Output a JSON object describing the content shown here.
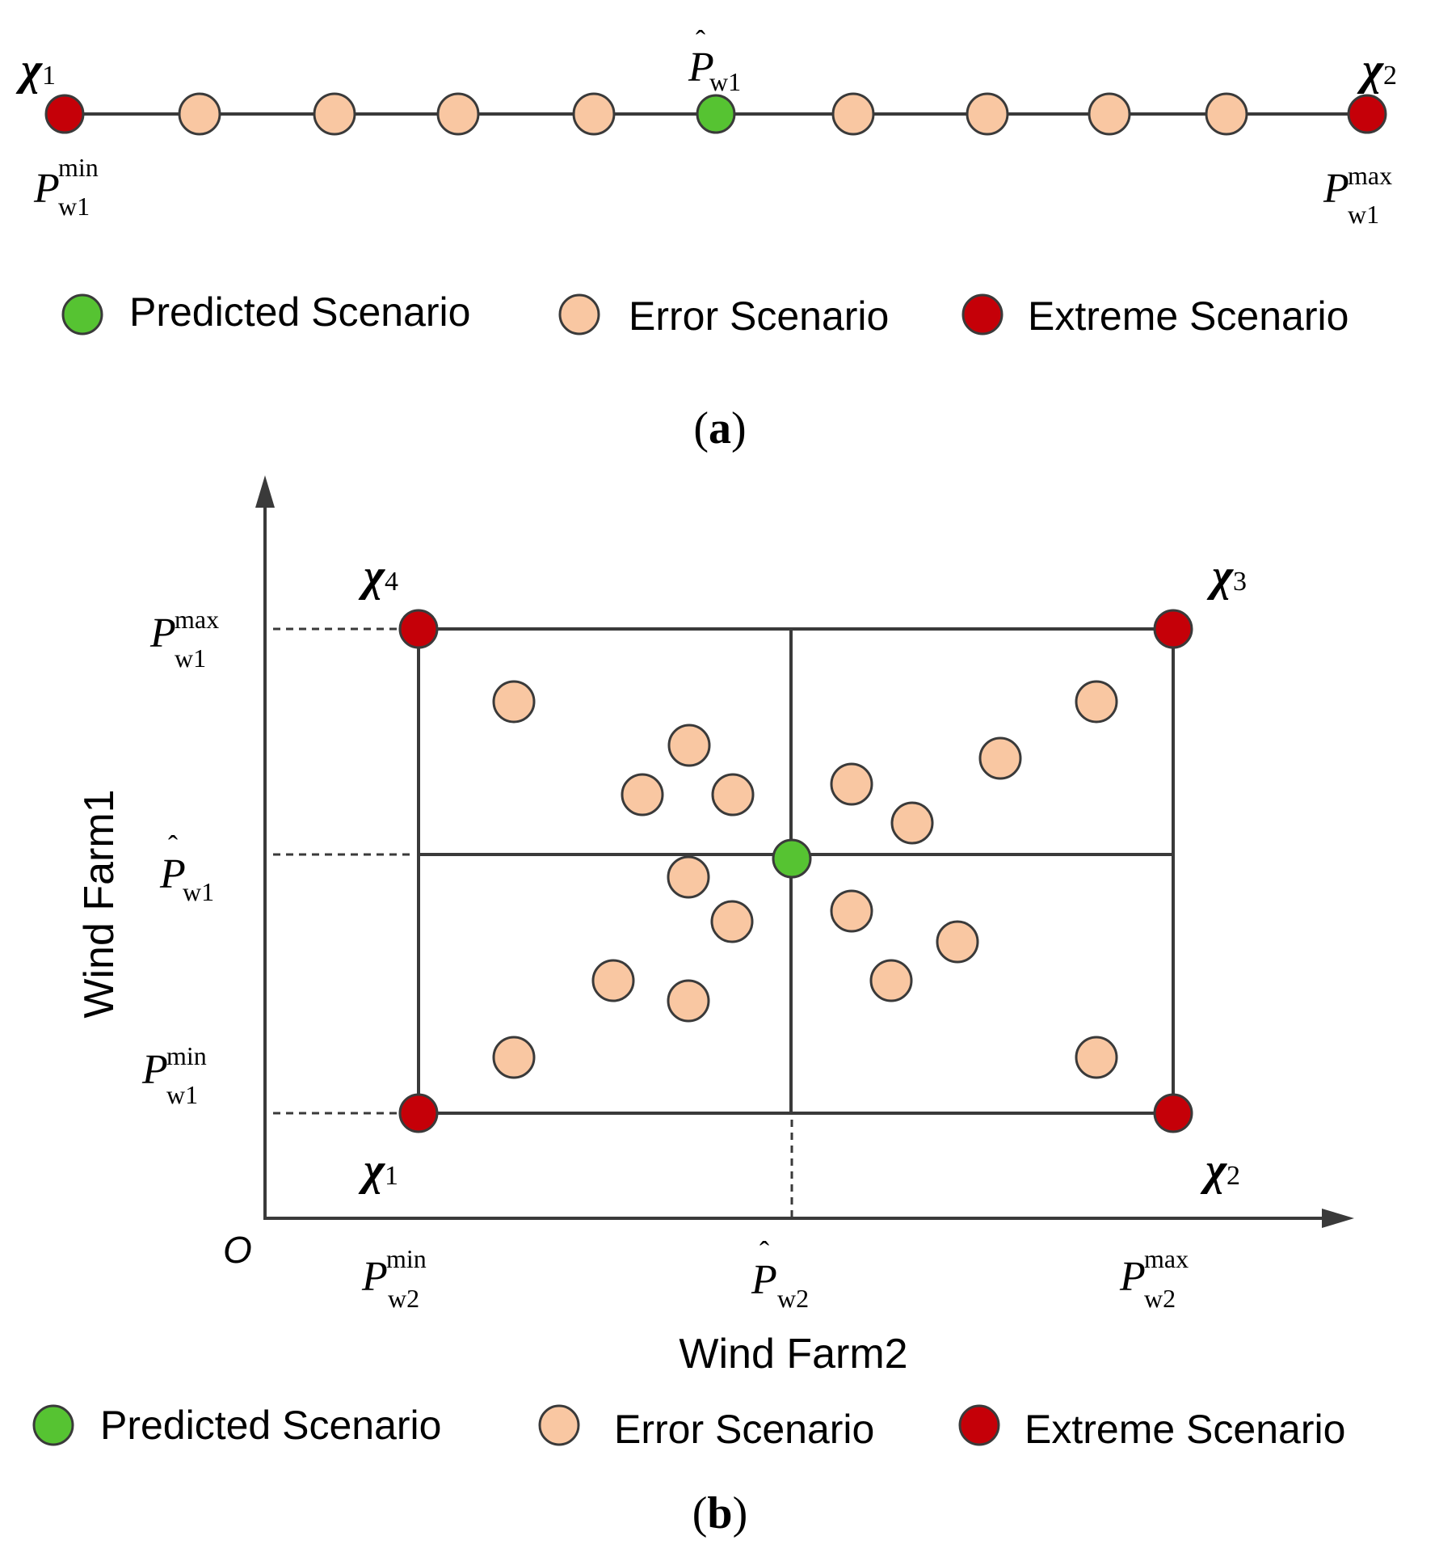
{
  "legend": {
    "predicted": "Predicted Scenario",
    "error": "Error Scenario",
    "extreme": "Extreme Scenario"
  },
  "colors": {
    "predicted_fill": "#56c332",
    "error_fill": "#f9c7a2",
    "extreme_fill": "#c50008",
    "stroke": "#3a3a3a",
    "text": "#000000"
  },
  "panel_a": {
    "caption": "a",
    "points": [
      "extreme",
      "error",
      "error",
      "error",
      "error",
      "predicted",
      "error",
      "error",
      "error",
      "error",
      "extreme"
    ],
    "chi_left_sub": "1",
    "chi_right_sub": "2",
    "top_label": {
      "main": "P",
      "sub": "w1",
      "hat": true
    },
    "min_label": {
      "main": "P",
      "sub": "w1",
      "sup": "min"
    },
    "max_label": {
      "main": "P",
      "sub": "w1",
      "sup": "max"
    }
  },
  "panel_b": {
    "caption": "b",
    "x_axis_title": "Wind Farm2",
    "y_axis_title": "Wind Farm1",
    "origin": "O",
    "chi_labels": [
      "1",
      "2",
      "3",
      "4"
    ],
    "y_ticks": [
      {
        "main": "P",
        "sub": "w1",
        "sup": "max"
      },
      {
        "main": "P",
        "sub": "w1",
        "hat": true
      },
      {
        "main": "P",
        "sub": "w1",
        "sup": "min"
      }
    ],
    "x_ticks": [
      {
        "main": "P",
        "sub": "w2",
        "sup": "min"
      },
      {
        "main": "P",
        "sub": "w2",
        "hat": true
      },
      {
        "main": "P",
        "sub": "w2",
        "sup": "max"
      }
    ],
    "scatter_count": 22
  }
}
